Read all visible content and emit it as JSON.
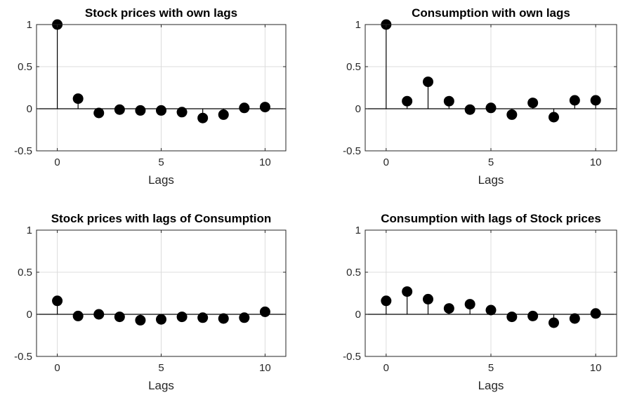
{
  "colors": {
    "marker": "#000000",
    "axes": "#262626",
    "grid": "#dcdcdc",
    "background": "#ffffff"
  },
  "chart_data": [
    {
      "type": "stem",
      "title": "Stock prices with own lags",
      "xlabel": "Lags",
      "ylabel": "",
      "xlim": [
        -1,
        11
      ],
      "ylim": [
        -0.5,
        1
      ],
      "xticks": [
        0,
        5,
        10
      ],
      "yticks": [
        -0.5,
        0,
        0.5,
        1
      ],
      "ytick_labels": [
        "-0.5",
        "0",
        "0.5",
        "1"
      ],
      "grid": true,
      "x": [
        0,
        1,
        2,
        3,
        4,
        5,
        6,
        7,
        8,
        9,
        10
      ],
      "values": [
        1.0,
        0.12,
        -0.05,
        -0.01,
        -0.02,
        -0.02,
        -0.04,
        -0.11,
        -0.07,
        0.01,
        0.02
      ]
    },
    {
      "type": "stem",
      "title": "Consumption with own lags",
      "xlabel": "Lags",
      "ylabel": "",
      "xlim": [
        -1,
        11
      ],
      "ylim": [
        -0.5,
        1
      ],
      "xticks": [
        0,
        5,
        10
      ],
      "yticks": [
        -0.5,
        0,
        0.5,
        1
      ],
      "ytick_labels": [
        "-0.5",
        "0",
        "0.5",
        "1"
      ],
      "grid": true,
      "x": [
        0,
        1,
        2,
        3,
        4,
        5,
        6,
        7,
        8,
        9,
        10
      ],
      "values": [
        1.0,
        0.09,
        0.32,
        0.09,
        -0.01,
        0.01,
        -0.07,
        0.07,
        -0.1,
        0.1,
        0.1
      ]
    },
    {
      "type": "stem",
      "title": "Stock prices with lags of Consumption",
      "xlabel": "Lags",
      "ylabel": "",
      "xlim": [
        -1,
        11
      ],
      "ylim": [
        -0.5,
        1
      ],
      "xticks": [
        0,
        5,
        10
      ],
      "yticks": [
        -0.5,
        0,
        0.5,
        1
      ],
      "ytick_labels": [
        "-0.5",
        "0",
        "0.5",
        "1"
      ],
      "grid": true,
      "x": [
        0,
        1,
        2,
        3,
        4,
        5,
        6,
        7,
        8,
        9,
        10
      ],
      "values": [
        0.16,
        -0.02,
        0.0,
        -0.03,
        -0.07,
        -0.06,
        -0.03,
        -0.04,
        -0.05,
        -0.04,
        0.03
      ]
    },
    {
      "type": "stem",
      "title": "Consumption with lags of Stock prices",
      "xlabel": "Lags",
      "ylabel": "",
      "xlim": [
        -1,
        11
      ],
      "ylim": [
        -0.5,
        1
      ],
      "xticks": [
        0,
        5,
        10
      ],
      "yticks": [
        -0.5,
        0,
        0.5,
        1
      ],
      "ytick_labels": [
        "-0.5",
        "0",
        "0.5",
        "1"
      ],
      "grid": true,
      "x": [
        0,
        1,
        2,
        3,
        4,
        5,
        6,
        7,
        8,
        9,
        10
      ],
      "values": [
        0.16,
        0.27,
        0.18,
        0.07,
        0.12,
        0.05,
        -0.03,
        -0.02,
        -0.1,
        -0.05,
        0.01
      ]
    }
  ]
}
